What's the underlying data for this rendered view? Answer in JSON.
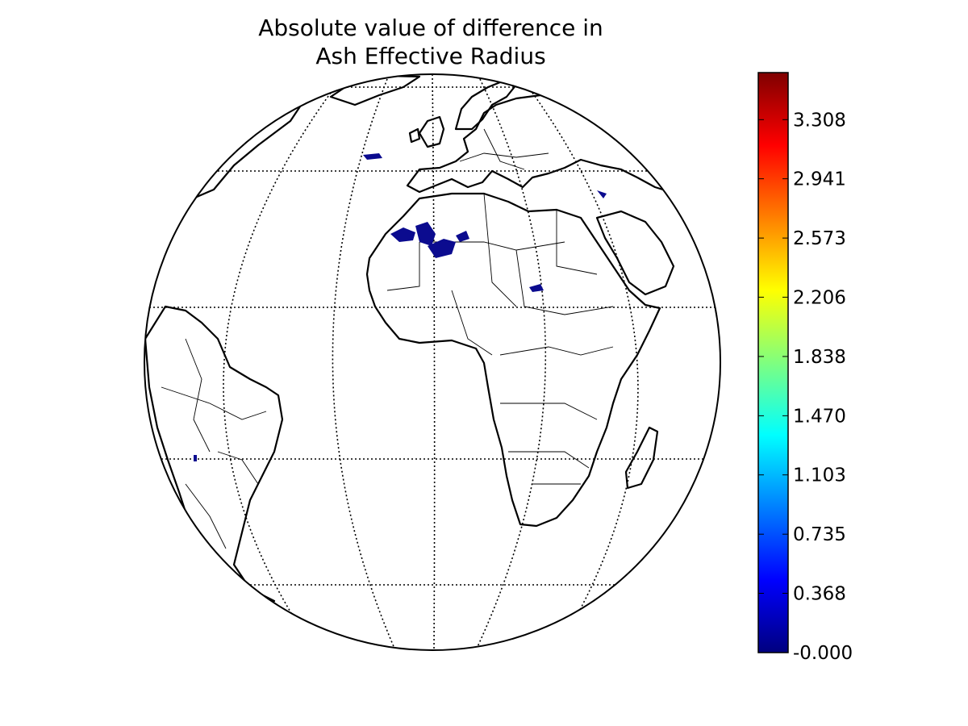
{
  "figure": {
    "title_line1": "Absolute value of difference in",
    "title_line2": "Ash Effective Radius"
  },
  "colorbar": {
    "colormap": "jet",
    "colors": [
      "#00007f",
      "#0000ff",
      "#007fff",
      "#00ffff",
      "#7fff7f",
      "#ffff00",
      "#ff7f00",
      "#ff0000",
      "#7f0000"
    ],
    "min": 0.0,
    "max": 3.6,
    "ticks": [
      {
        "value": 0.0,
        "label": "-0.000"
      },
      {
        "value": 0.368,
        "label": "0.368"
      },
      {
        "value": 0.735,
        "label": "0.735"
      },
      {
        "value": 1.103,
        "label": "1.103"
      },
      {
        "value": 1.47,
        "label": "1.470"
      },
      {
        "value": 1.838,
        "label": "1.838"
      },
      {
        "value": 2.206,
        "label": "2.206"
      },
      {
        "value": 2.573,
        "label": "2.573"
      },
      {
        "value": 2.941,
        "label": "2.941"
      },
      {
        "value": 3.308,
        "label": "3.308"
      }
    ]
  },
  "map": {
    "projection": "orthographic",
    "center_lon": 0,
    "center_lat": 0,
    "region": "Africa, Europe, South America",
    "graticule": "dotted",
    "coastline_color": "#000000",
    "data_color": "#0b0b8f"
  }
}
